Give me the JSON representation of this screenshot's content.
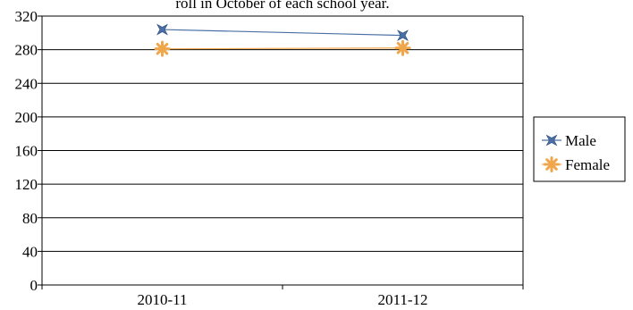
{
  "chart_data": {
    "type": "line",
    "title": "roll  in October of each school year.",
    "xlabel": "",
    "ylabel": "",
    "categories": [
      "2010-11",
      "2011-12"
    ],
    "ylim": [
      0,
      320
    ],
    "yticks": [
      0,
      40,
      80,
      120,
      160,
      200,
      240,
      280,
      320
    ],
    "grid": "horizontal",
    "legend_position": "right",
    "series": [
      {
        "name": "Male",
        "values": [
          304,
          297
        ],
        "color": "#4a6fa5",
        "marker": "star-4"
      },
      {
        "name": "Female",
        "values": [
          281,
          282
        ],
        "color": "#f0a64a",
        "marker": "asterisk"
      }
    ]
  }
}
